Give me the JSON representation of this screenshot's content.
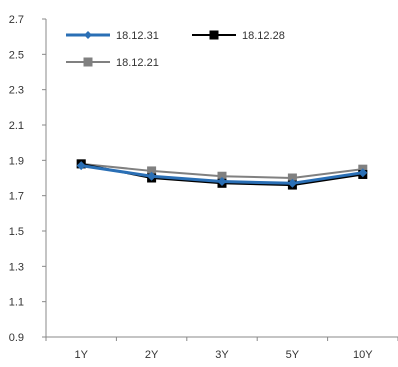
{
  "chart_data": {
    "type": "line",
    "categories": [
      "1Y",
      "2Y",
      "3Y",
      "5Y",
      "10Y"
    ],
    "ylim": [
      0.9,
      2.7
    ],
    "y_ticks": [
      "0.9",
      "1.1",
      "1.3",
      "1.5",
      "1.7",
      "1.9",
      "2.1",
      "2.3",
      "2.5",
      "2.7"
    ],
    "grid": false,
    "legend_position": "top-left",
    "series": [
      {
        "name": "18.12.31",
        "values": [
          1.87,
          1.81,
          1.78,
          1.77,
          1.83
        ],
        "color": "#2a6fb5",
        "marker": "diamond"
      },
      {
        "name": "18.12.28",
        "values": [
          1.88,
          1.8,
          1.77,
          1.76,
          1.82
        ],
        "color": "#000000",
        "marker": "square"
      },
      {
        "name": "18.12.21",
        "values": [
          1.88,
          1.84,
          1.81,
          1.8,
          1.85
        ],
        "color": "#808080",
        "marker": "square"
      }
    ]
  }
}
